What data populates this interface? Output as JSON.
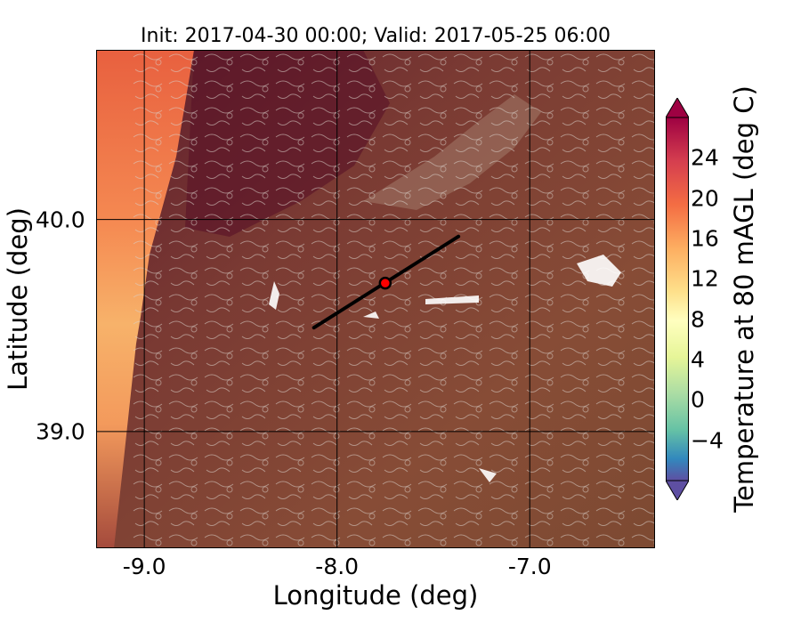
{
  "title": "Init: 2017-04-30 00:00; Valid: 2017-05-25 06:00",
  "map": {
    "x_axis": {
      "label": "Longitude (deg)",
      "ticks": [
        "-9.0",
        "-8.0",
        "-7.0"
      ],
      "range": [
        -9.25,
        -6.35
      ]
    },
    "y_axis": {
      "label": "Latitude (deg)",
      "ticks": [
        "40.0",
        "39.0"
      ],
      "range": [
        38.45,
        40.8
      ]
    },
    "grid": true,
    "transect": {
      "lon_start": -8.12,
      "lat_start": 39.49,
      "lon_end": -7.37,
      "lat_end": 39.92,
      "color": "#000000"
    },
    "point": {
      "lon": -7.75,
      "lat": 39.7,
      "color": "#ff0000"
    }
  },
  "colorbar": {
    "label": "Temperature at 80 mAGL (deg C)",
    "ticks": [
      "24",
      "20",
      "16",
      "12",
      "8",
      "4",
      "0",
      "−4"
    ],
    "range": [
      -8,
      28
    ],
    "extend": "both"
  },
  "colors": {
    "warm_land": "#8a4b36",
    "dark_land": "#6a2030",
    "coast": "#f08a50",
    "contour": "#d9d0c8"
  }
}
